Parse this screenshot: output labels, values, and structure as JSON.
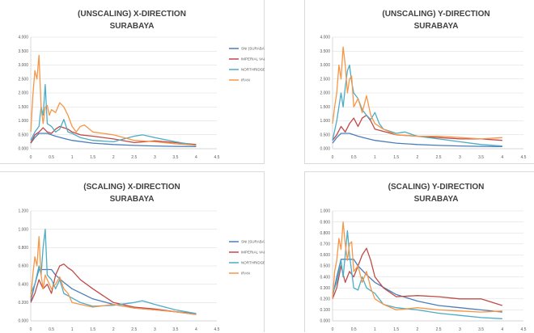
{
  "colors": {
    "sni": "#4a7ebb",
    "imperial": "#be4b48",
    "northridge": "#4bacc6",
    "iran": "#f79646"
  },
  "chart_data": [
    {
      "type": "line",
      "title_lines": [
        "(UNSCALING) X-DIRECTION",
        "SURABAYA"
      ],
      "xlim": [
        0,
        4.5
      ],
      "ylim": [
        0,
        4.0
      ],
      "xticks": [
        "0",
        "0.5",
        "1",
        "1.5",
        "2",
        "2.5",
        "3",
        "3.5",
        "4",
        "4.5"
      ],
      "yticks": [
        "0.000",
        "0.500",
        "1.000",
        "1.500",
        "2.000",
        "2.500",
        "3.000",
        "3.500",
        "4.000"
      ],
      "legend_position": "right",
      "grid": true,
      "series": [
        {
          "name": "SNI (SURABAYA)",
          "x": [
            0,
            0.1,
            0.2,
            0.4,
            0.6,
            0.8,
            1,
            1.5,
            2,
            2.5,
            3,
            3.5,
            4
          ],
          "y": [
            0.2,
            0.4,
            0.55,
            0.55,
            0.45,
            0.37,
            0.3,
            0.2,
            0.15,
            0.12,
            0.1,
            0.085,
            0.075
          ]
        },
        {
          "name": "IMPERIAL VALLEY",
          "x": [
            0,
            0.1,
            0.2,
            0.3,
            0.4,
            0.5,
            0.6,
            0.7,
            0.8,
            0.9,
            1,
            1.2,
            1.5,
            2,
            2.5,
            3,
            3.5,
            4
          ],
          "y": [
            0.2,
            0.5,
            0.6,
            0.75,
            0.6,
            0.55,
            0.7,
            0.8,
            0.75,
            0.7,
            0.6,
            0.5,
            0.45,
            0.35,
            0.22,
            0.28,
            0.22,
            0.15
          ]
        },
        {
          "name": "NORTHRIDGE",
          "x": [
            0,
            0.1,
            0.2,
            0.25,
            0.3,
            0.35,
            0.4,
            0.5,
            0.6,
            0.7,
            0.8,
            0.9,
            1,
            1.2,
            1.5,
            2,
            2.5,
            2.7,
            3,
            3.5,
            4
          ],
          "y": [
            0.3,
            0.6,
            0.8,
            1.5,
            1.2,
            2.3,
            0.9,
            0.8,
            0.6,
            0.7,
            1.05,
            0.6,
            0.55,
            0.4,
            0.3,
            0.25,
            0.45,
            0.5,
            0.4,
            0.25,
            0.12
          ]
        },
        {
          "name": "IRAN",
          "x": [
            0,
            0.05,
            0.1,
            0.15,
            0.2,
            0.25,
            0.3,
            0.35,
            0.4,
            0.45,
            0.5,
            0.6,
            0.7,
            0.8,
            0.9,
            1,
            1.1,
            1.2,
            1.3,
            1.5,
            2,
            2.5,
            3,
            3.5,
            4
          ],
          "y": [
            0.6,
            1.9,
            2.8,
            2.5,
            3.35,
            1.5,
            0.9,
            1.5,
            1.55,
            1.2,
            1.4,
            1.3,
            1.65,
            1.5,
            1.2,
            0.8,
            0.6,
            0.8,
            0.85,
            0.6,
            0.5,
            0.3,
            0.25,
            0.18,
            0.12
          ]
        }
      ]
    },
    {
      "type": "line",
      "title_lines": [
        "(UNSCALING) Y-DIRECTION",
        "SURABAYA"
      ],
      "xlim": [
        0,
        4.5
      ],
      "ylim": [
        0,
        4.0
      ],
      "xticks": [
        "0",
        "0.5",
        "1",
        "1.5",
        "2",
        "2.5",
        "3",
        "3.5",
        "4",
        "4.5"
      ],
      "yticks": [
        "0.000",
        "0.500",
        "1.000",
        "1.500",
        "2.000",
        "2.500",
        "3.000",
        "3.500",
        "4.000"
      ],
      "grid": true,
      "series": [
        {
          "name": "SNI (SURABAYA)",
          "x": [
            0,
            0.1,
            0.2,
            0.4,
            0.6,
            0.8,
            1,
            1.5,
            2,
            2.5,
            3,
            3.5,
            4
          ],
          "y": [
            0.2,
            0.4,
            0.55,
            0.55,
            0.45,
            0.37,
            0.3,
            0.2,
            0.15,
            0.12,
            0.1,
            0.085,
            0.075
          ]
        },
        {
          "name": "IMPERIAL VALLEY",
          "x": [
            0,
            0.1,
            0.2,
            0.3,
            0.4,
            0.5,
            0.6,
            0.7,
            0.8,
            0.9,
            1,
            1.5,
            2,
            2.5,
            3,
            3.5,
            4
          ],
          "y": [
            0.3,
            0.5,
            0.8,
            0.6,
            0.9,
            1.1,
            0.8,
            1.1,
            1.2,
            1.0,
            0.7,
            0.5,
            0.45,
            0.4,
            0.35,
            0.35,
            0.3
          ]
        },
        {
          "name": "NORTHRIDGE",
          "x": [
            0,
            0.1,
            0.2,
            0.25,
            0.3,
            0.35,
            0.4,
            0.45,
            0.5,
            0.6,
            0.7,
            0.8,
            0.9,
            1,
            1.1,
            1.2,
            1.5,
            1.7,
            2,
            2.5,
            3,
            3.5,
            4
          ],
          "y": [
            0.3,
            1.0,
            2.0,
            1.5,
            2.2,
            2.8,
            3.0,
            2.4,
            2.0,
            1.8,
            1.4,
            1.2,
            1.05,
            1.3,
            0.9,
            0.7,
            0.55,
            0.6,
            0.45,
            0.35,
            0.25,
            0.15,
            0.1
          ]
        },
        {
          "name": "IRAN",
          "x": [
            0,
            0.05,
            0.1,
            0.15,
            0.2,
            0.25,
            0.3,
            0.35,
            0.4,
            0.45,
            0.5,
            0.6,
            0.7,
            0.8,
            0.9,
            1,
            1.2,
            1.5,
            2,
            2.5,
            3,
            3.5,
            4
          ],
          "y": [
            0.9,
            1.5,
            2.0,
            3.0,
            2.5,
            3.65,
            3.0,
            2.0,
            2.5,
            2.6,
            1.5,
            1.8,
            1.3,
            1.9,
            1.2,
            0.9,
            0.7,
            0.5,
            0.45,
            0.45,
            0.4,
            0.35,
            0.4
          ]
        }
      ]
    },
    {
      "type": "line",
      "title_lines": [
        "(SCALING) X-DIRECTION",
        "SURABAYA"
      ],
      "xlim": [
        0,
        4.5
      ],
      "ylim": [
        0,
        1.2
      ],
      "xticks": [
        "0",
        "0.5",
        "1",
        "1.5",
        "2",
        "2.5",
        "3",
        "3.5",
        "4",
        "4.5"
      ],
      "yticks": [
        "0.000",
        "0.200",
        "0.400",
        "0.600",
        "0.800",
        "1.000",
        "1.200"
      ],
      "legend_position": "right",
      "grid": true,
      "series": [
        {
          "name": "SNI (SURABAYA)",
          "x": [
            0,
            0.1,
            0.2,
            0.3,
            0.4,
            0.5,
            0.6,
            0.8,
            1,
            1.5,
            2,
            2.5,
            3,
            3.5,
            4
          ],
          "y": [
            0.22,
            0.4,
            0.56,
            0.56,
            0.56,
            0.56,
            0.5,
            0.42,
            0.35,
            0.24,
            0.18,
            0.14,
            0.12,
            0.1,
            0.08
          ]
        },
        {
          "name": "IMPERIAL VALLEY",
          "x": [
            0,
            0.1,
            0.2,
            0.3,
            0.4,
            0.5,
            0.6,
            0.7,
            0.8,
            0.9,
            1,
            1.2,
            1.5,
            2,
            2.5,
            3,
            3.5,
            4
          ],
          "y": [
            0.2,
            0.3,
            0.45,
            0.35,
            0.4,
            0.3,
            0.5,
            0.6,
            0.62,
            0.58,
            0.55,
            0.45,
            0.35,
            0.2,
            0.15,
            0.13,
            0.1,
            0.07
          ]
        },
        {
          "name": "NORTHRIDGE",
          "x": [
            0,
            0.1,
            0.2,
            0.25,
            0.3,
            0.35,
            0.4,
            0.5,
            0.6,
            0.7,
            0.8,
            1,
            1.2,
            1.5,
            2,
            2.5,
            2.7,
            3,
            3.5,
            4
          ],
          "y": [
            0.3,
            0.4,
            0.6,
            0.5,
            0.8,
            1.0,
            0.5,
            0.45,
            0.35,
            0.45,
            0.3,
            0.25,
            0.2,
            0.16,
            0.17,
            0.2,
            0.22,
            0.18,
            0.12,
            0.08
          ]
        },
        {
          "name": "IRAN",
          "x": [
            0,
            0.05,
            0.1,
            0.15,
            0.2,
            0.25,
            0.3,
            0.35,
            0.4,
            0.5,
            0.6,
            0.7,
            0.8,
            0.9,
            1,
            1.2,
            1.5,
            2,
            2.5,
            3,
            3.5,
            4
          ],
          "y": [
            0.25,
            0.5,
            0.7,
            0.6,
            0.92,
            0.5,
            0.35,
            0.5,
            0.45,
            0.35,
            0.4,
            0.48,
            0.35,
            0.3,
            0.2,
            0.18,
            0.15,
            0.18,
            0.14,
            0.12,
            0.1,
            0.07
          ]
        }
      ]
    },
    {
      "type": "line",
      "title_lines": [
        "(SCALING) Y-DIRECTION",
        "SURABAYA"
      ],
      "xlim": [
        0,
        4.5
      ],
      "ylim": [
        0,
        1.0
      ],
      "xticks": [
        "0",
        "0.5",
        "1",
        "1.5",
        "2",
        "2.5",
        "3",
        "3.5",
        "4",
        "4.5"
      ],
      "yticks": [
        "0.000",
        "0.100",
        "0.200",
        "0.300",
        "0.400",
        "0.500",
        "0.600",
        "0.700",
        "0.800",
        "0.900",
        "1.000"
      ],
      "grid": true,
      "series": [
        {
          "name": "SNI (SURABAYA)",
          "x": [
            0,
            0.1,
            0.2,
            0.3,
            0.4,
            0.5,
            0.6,
            0.8,
            1,
            1.5,
            2,
            2.5,
            3,
            3.5,
            4
          ],
          "y": [
            0.22,
            0.4,
            0.56,
            0.56,
            0.56,
            0.56,
            0.5,
            0.42,
            0.35,
            0.24,
            0.18,
            0.14,
            0.12,
            0.1,
            0.08
          ]
        },
        {
          "name": "IMPERIAL VALLEY",
          "x": [
            0,
            0.1,
            0.2,
            0.3,
            0.4,
            0.5,
            0.6,
            0.7,
            0.8,
            0.9,
            1,
            1.2,
            1.5,
            2,
            2.5,
            3,
            3.5,
            4
          ],
          "y": [
            0.2,
            0.3,
            0.5,
            0.35,
            0.45,
            0.4,
            0.5,
            0.6,
            0.66,
            0.55,
            0.4,
            0.3,
            0.22,
            0.23,
            0.22,
            0.2,
            0.2,
            0.14
          ]
        },
        {
          "name": "NORTHRIDGE",
          "x": [
            0,
            0.1,
            0.2,
            0.25,
            0.3,
            0.35,
            0.4,
            0.45,
            0.5,
            0.6,
            0.7,
            0.8,
            1,
            1.2,
            1.5,
            2,
            2.5,
            3,
            3.5,
            4
          ],
          "y": [
            0.25,
            0.35,
            0.55,
            0.4,
            0.6,
            0.82,
            0.6,
            0.45,
            0.3,
            0.28,
            0.4,
            0.3,
            0.25,
            0.15,
            0.12,
            0.1,
            0.07,
            0.05,
            0.03,
            0.02
          ]
        },
        {
          "name": "IRAN",
          "x": [
            0,
            0.05,
            0.1,
            0.15,
            0.2,
            0.25,
            0.3,
            0.35,
            0.4,
            0.45,
            0.5,
            0.6,
            0.7,
            0.8,
            0.9,
            1,
            1.2,
            1.5,
            2,
            2.5,
            3,
            3.5,
            4
          ],
          "y": [
            0.2,
            0.45,
            0.55,
            0.75,
            0.65,
            0.9,
            0.7,
            0.55,
            0.7,
            0.72,
            0.45,
            0.5,
            0.35,
            0.45,
            0.3,
            0.2,
            0.15,
            0.1,
            0.12,
            0.1,
            0.09,
            0.08,
            0.09
          ]
        }
      ]
    }
  ]
}
